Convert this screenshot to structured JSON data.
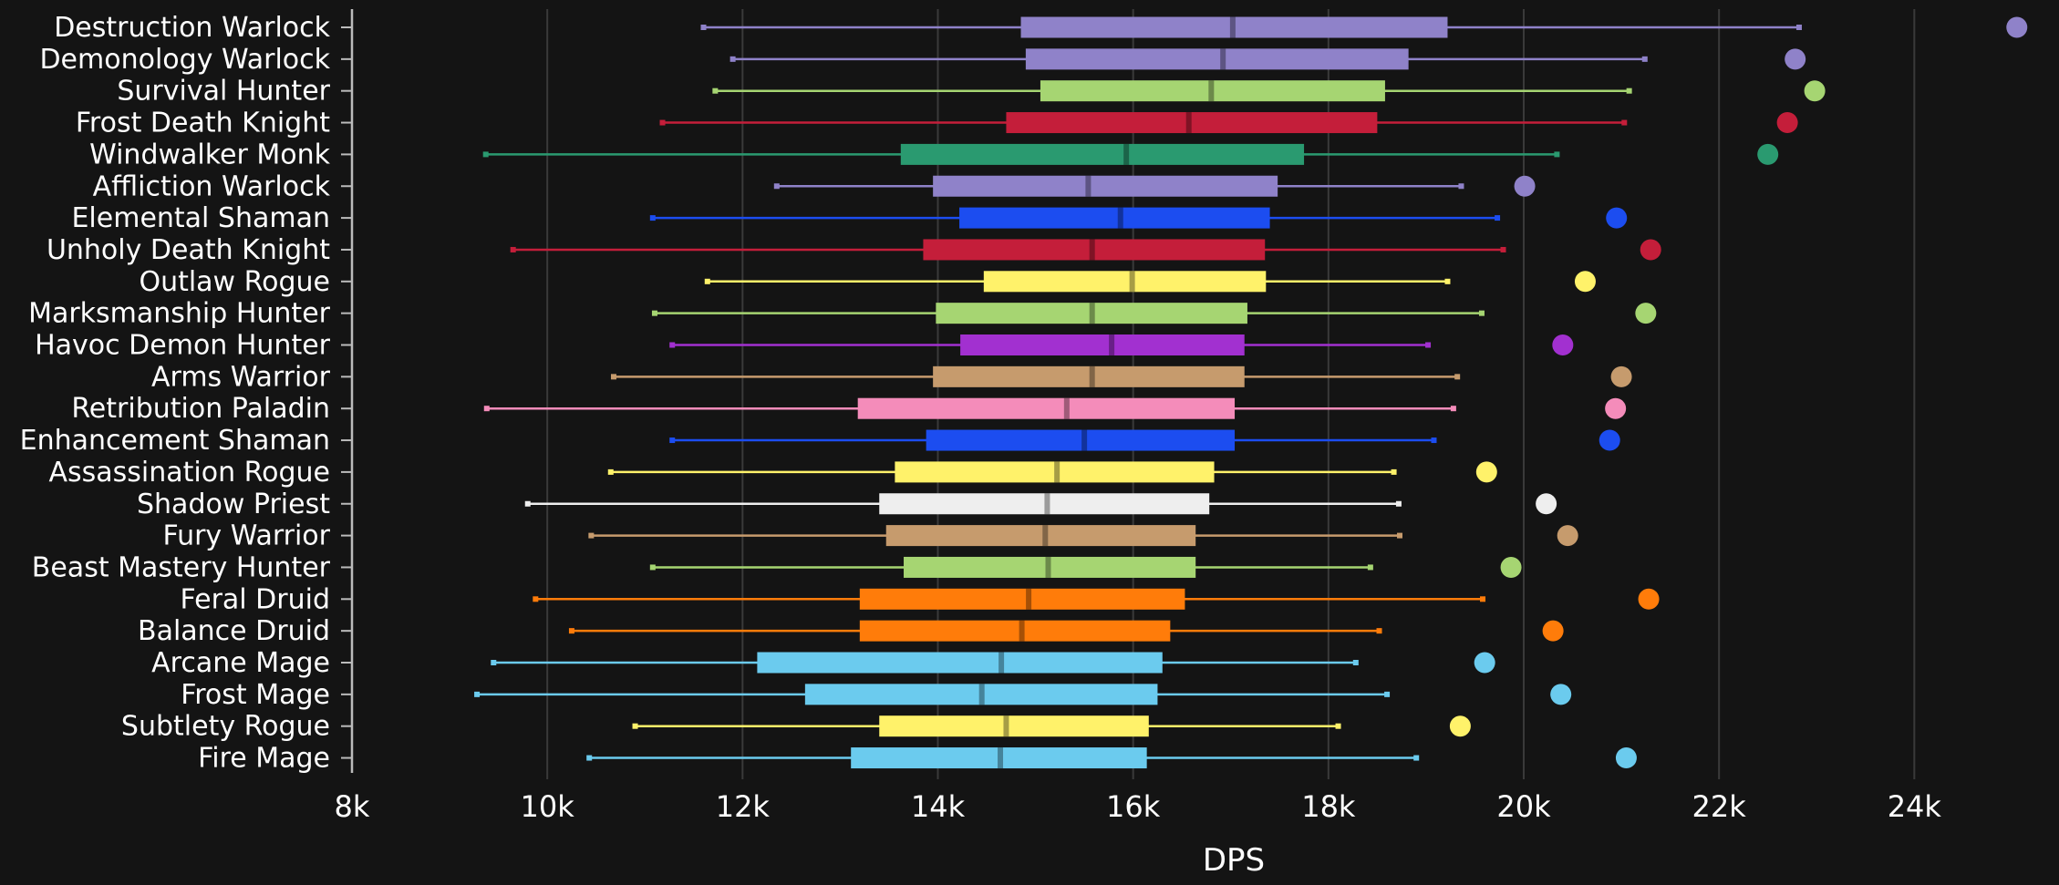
{
  "chart_data": {
    "type": "boxplot",
    "xlabel": "DPS",
    "xlim": [
      8000,
      25000
    ],
    "x_ticks": [
      {
        "value": 8000,
        "label": "8k"
      },
      {
        "value": 10000,
        "label": "10k"
      },
      {
        "value": 12000,
        "label": "12k"
      },
      {
        "value": 14000,
        "label": "14k"
      },
      {
        "value": 16000,
        "label": "16k"
      },
      {
        "value": 18000,
        "label": "18k"
      },
      {
        "value": 20000,
        "label": "20k"
      },
      {
        "value": 22000,
        "label": "22k"
      },
      {
        "value": 24000,
        "label": "24k"
      }
    ],
    "grid": true,
    "series": [
      {
        "name": "Destruction Warlock",
        "color": "#8f82c9",
        "min": 11600,
        "q1": 14850,
        "median": 17020,
        "q3": 19220,
        "max": 22820,
        "outlier": 25050
      },
      {
        "name": "Demonology Warlock",
        "color": "#8f82c9",
        "min": 11900,
        "q1": 14900,
        "median": 16920,
        "q3": 18820,
        "max": 21240,
        "outlier": 22780
      },
      {
        "name": "Survival Hunter",
        "color": "#a6d572",
        "min": 11720,
        "q1": 15050,
        "median": 16800,
        "q3": 18580,
        "max": 21080,
        "outlier": 22980
      },
      {
        "name": "Frost Death Knight",
        "color": "#c41e3a",
        "min": 11180,
        "q1": 14700,
        "median": 16570,
        "q3": 18500,
        "max": 21030,
        "outlier": 22700
      },
      {
        "name": "Windwalker Monk",
        "color": "#2a9a70",
        "min": 9370,
        "q1": 13620,
        "median": 15930,
        "q3": 17750,
        "max": 20340,
        "outlier": 22500
      },
      {
        "name": "Affliction Warlock",
        "color": "#8f82c9",
        "min": 12350,
        "q1": 13950,
        "median": 15540,
        "q3": 17480,
        "max": 19360,
        "outlier": 20010
      },
      {
        "name": "Elemental Shaman",
        "color": "#1c4df0",
        "min": 11080,
        "q1": 14220,
        "median": 15870,
        "q3": 17400,
        "max": 19730,
        "outlier": 20950
      },
      {
        "name": "Unholy Death Knight",
        "color": "#c41e3a",
        "min": 9650,
        "q1": 13850,
        "median": 15580,
        "q3": 17350,
        "max": 19790,
        "outlier": 21300
      },
      {
        "name": "Outlaw Rogue",
        "color": "#fff26a",
        "min": 11640,
        "q1": 14470,
        "median": 15990,
        "q3": 17360,
        "max": 19220,
        "outlier": 20630
      },
      {
        "name": "Marksmanship Hunter",
        "color": "#a6d572",
        "min": 11100,
        "q1": 13980,
        "median": 15580,
        "q3": 17170,
        "max": 19570,
        "outlier": 21250
      },
      {
        "name": "Havoc Demon Hunter",
        "color": "#a230d0",
        "min": 11280,
        "q1": 14230,
        "median": 15780,
        "q3": 17140,
        "max": 19020,
        "outlier": 20400
      },
      {
        "name": "Arms Warrior",
        "color": "#c69b6d",
        "min": 10680,
        "q1": 13950,
        "median": 15580,
        "q3": 17140,
        "max": 19320,
        "outlier": 21000
      },
      {
        "name": "Retribution Paladin",
        "color": "#f48cba",
        "min": 9380,
        "q1": 13180,
        "median": 15320,
        "q3": 17040,
        "max": 19280,
        "outlier": 20940
      },
      {
        "name": "Enhancement Shaman",
        "color": "#1c4df0",
        "min": 11280,
        "q1": 13880,
        "median": 15500,
        "q3": 17040,
        "max": 19080,
        "outlier": 20880
      },
      {
        "name": "Assassination Rogue",
        "color": "#fff26a",
        "min": 10650,
        "q1": 13560,
        "median": 15220,
        "q3": 16830,
        "max": 18670,
        "outlier": 19620
      },
      {
        "name": "Shadow Priest",
        "color": "#eeeeee",
        "min": 9800,
        "q1": 13400,
        "median": 15120,
        "q3": 16780,
        "max": 18720,
        "outlier": 20230
      },
      {
        "name": "Fury Warrior",
        "color": "#c69b6d",
        "min": 10450,
        "q1": 13470,
        "median": 15100,
        "q3": 16640,
        "max": 18730,
        "outlier": 20450
      },
      {
        "name": "Beast Mastery Hunter",
        "color": "#a6d572",
        "min": 11080,
        "q1": 13650,
        "median": 15130,
        "q3": 16640,
        "max": 18430,
        "outlier": 19870
      },
      {
        "name": "Feral Druid",
        "color": "#ff7c0a",
        "min": 9880,
        "q1": 13200,
        "median": 14930,
        "q3": 16530,
        "max": 19580,
        "outlier": 21280
      },
      {
        "name": "Balance Druid",
        "color": "#ff7c0a",
        "min": 10250,
        "q1": 13200,
        "median": 14860,
        "q3": 16380,
        "max": 18520,
        "outlier": 20300
      },
      {
        "name": "Arcane Mage",
        "color": "#6bcbee",
        "min": 9450,
        "q1": 12150,
        "median": 14650,
        "q3": 16300,
        "max": 18280,
        "outlier": 19600
      },
      {
        "name": "Frost Mage",
        "color": "#6bcbee",
        "min": 9280,
        "q1": 12640,
        "median": 14450,
        "q3": 16250,
        "max": 18600,
        "outlier": 20380
      },
      {
        "name": "Subtlety Rogue",
        "color": "#fff26a",
        "min": 10900,
        "q1": 13400,
        "median": 14700,
        "q3": 16160,
        "max": 18100,
        "outlier": 19350
      },
      {
        "name": "Fire Mage",
        "color": "#6bcbee",
        "min": 10430,
        "q1": 13110,
        "median": 14640,
        "q3": 16140,
        "max": 18900,
        "outlier": 21050
      }
    ]
  }
}
